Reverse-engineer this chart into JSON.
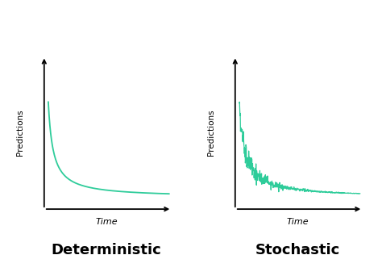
{
  "background_color": "#ffffff",
  "line_color": "#2ecc9a",
  "title_left": "Deterministic",
  "title_right": "Stochastic",
  "xlabel": "Time",
  "ylabel": "Predictions",
  "title_fontsize": 13,
  "label_fontsize": 8,
  "ylabel_fontsize": 7.5
}
